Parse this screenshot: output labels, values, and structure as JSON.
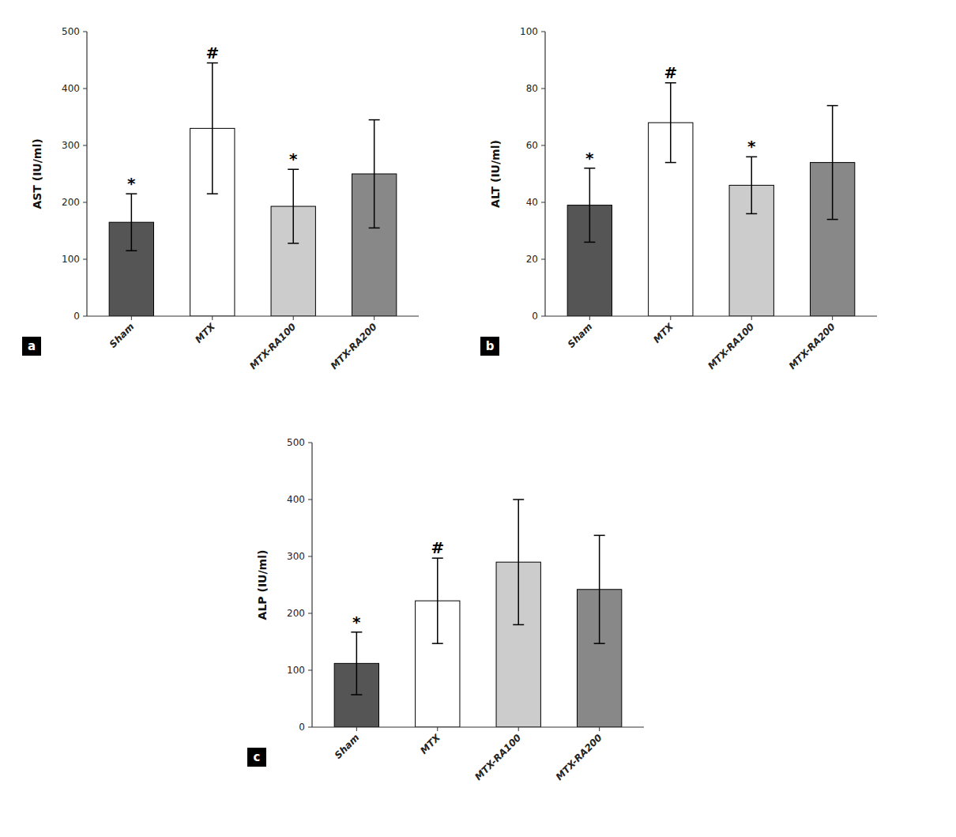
{
  "chart_data": [
    {
      "type": "bar",
      "title": "a",
      "ylabel": "AST (IU/ml)",
      "categories": [
        "Sham",
        "MTX",
        "MTX-RA100",
        "MTX-RA200"
      ],
      "values": [
        165,
        330,
        193,
        250
      ],
      "errors": [
        50,
        115,
        65,
        95
      ],
      "annotations": [
        "*",
        "#",
        "*",
        null
      ],
      "colors": [
        "#555555",
        "#ffffff",
        "#cccccc",
        "#888888"
      ],
      "ylim": [
        0,
        500
      ],
      "yticks": [
        0,
        100,
        200,
        300,
        400,
        500
      ],
      "grid": false
    },
    {
      "type": "bar",
      "title": "b",
      "ylabel": "ALT (IU/ml)",
      "categories": [
        "Sham",
        "MTX",
        "MTX-RA100",
        "MTX-RA200"
      ],
      "values": [
        39,
        68,
        46,
        54
      ],
      "errors": [
        13,
        14,
        10,
        20
      ],
      "annotations": [
        "*",
        "#",
        "*",
        null
      ],
      "colors": [
        "#555555",
        "#ffffff",
        "#cccccc",
        "#888888"
      ],
      "ylim": [
        0,
        100
      ],
      "yticks": [
        0,
        20,
        40,
        60,
        80,
        100
      ],
      "grid": false
    },
    {
      "type": "bar",
      "title": "c",
      "ylabel": "ALP (IU/ml)",
      "categories": [
        "Sham",
        "MTX",
        "MTX-RA100",
        "MTX-RA200"
      ],
      "values": [
        112,
        222,
        290,
        242
      ],
      "errors": [
        55,
        75,
        110,
        95
      ],
      "annotations": [
        "*",
        "#",
        null,
        null
      ],
      "colors": [
        "#555555",
        "#ffffff",
        "#cccccc",
        "#888888"
      ],
      "ylim": [
        0,
        500
      ],
      "yticks": [
        0,
        100,
        200,
        300,
        400,
        500
      ],
      "grid": false
    }
  ]
}
